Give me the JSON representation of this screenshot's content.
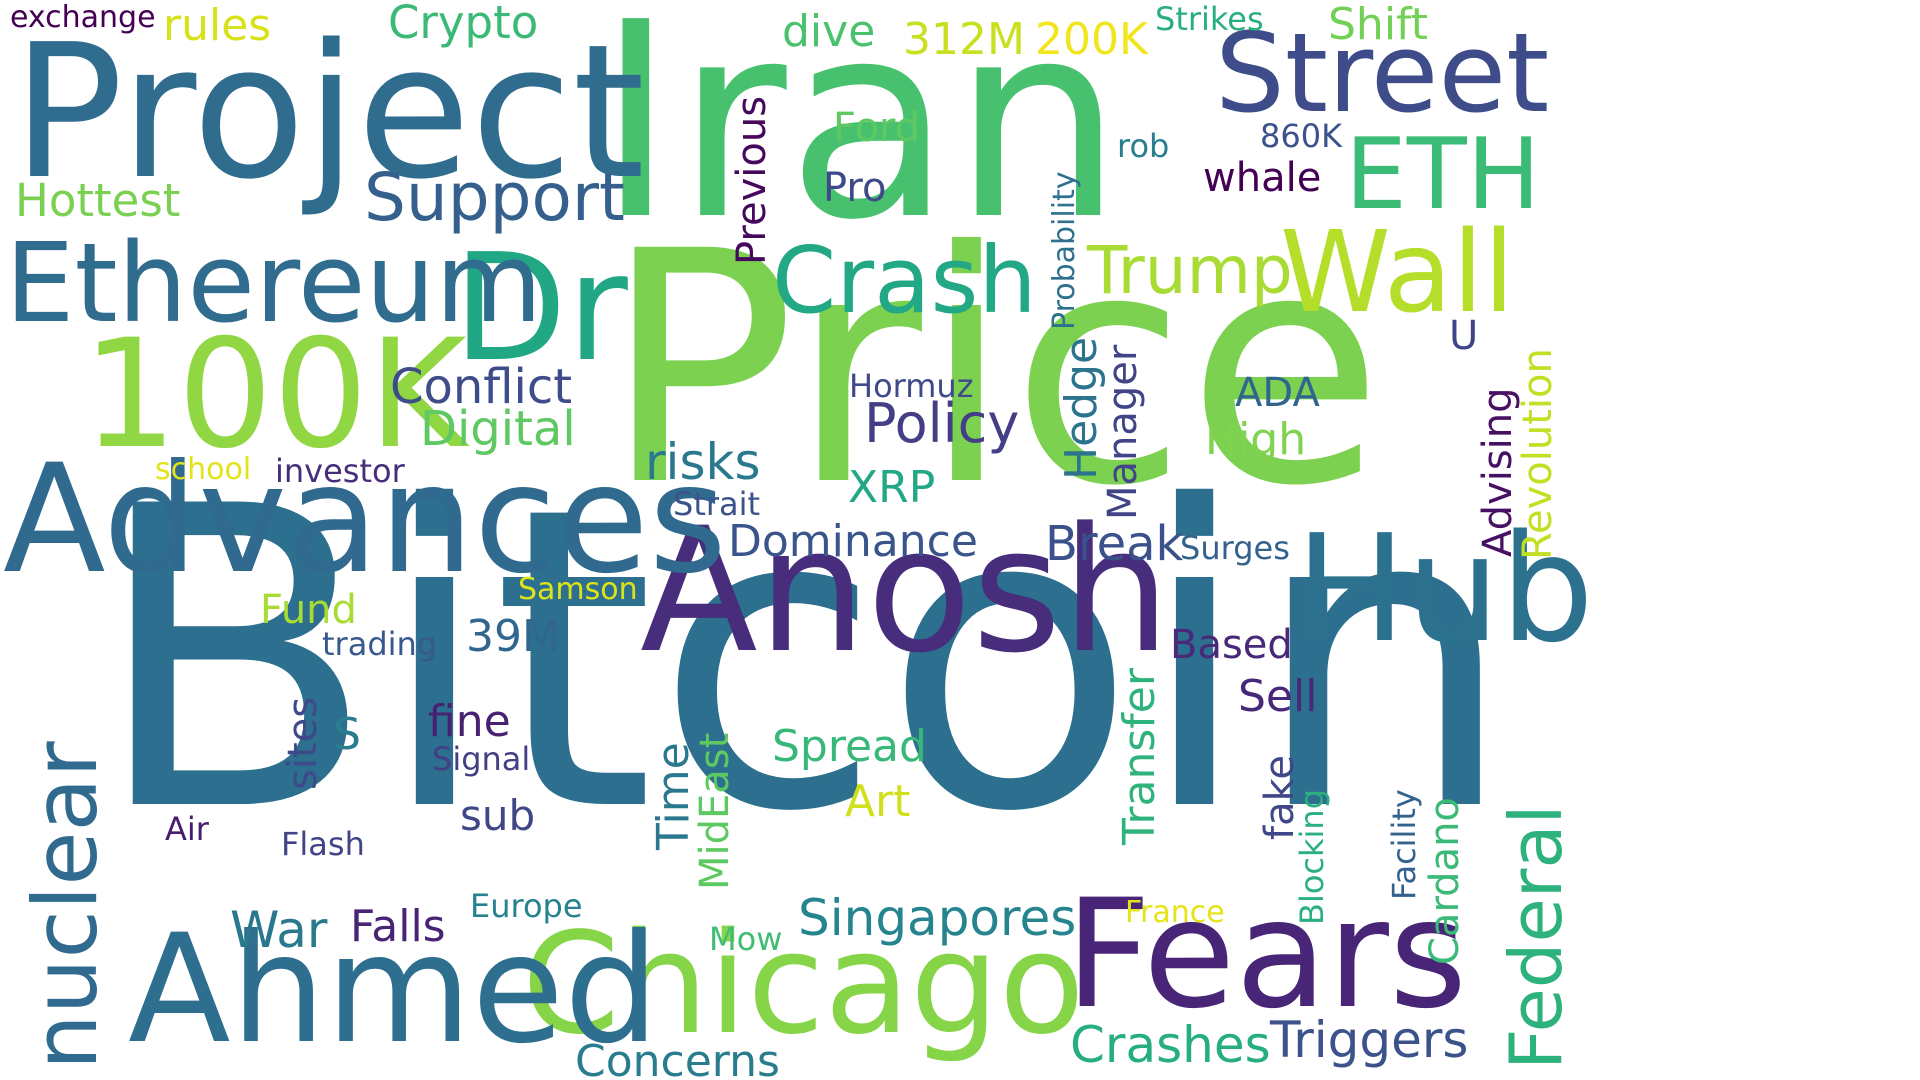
{
  "words": [
    {
      "text": "Bitcoin",
      "color": "#2d6f8e",
      "vertical": false
    },
    {
      "text": "Price",
      "color": "#7cd250",
      "vertical": false
    },
    {
      "text": "Iran",
      "color": "#48c16e",
      "vertical": false
    },
    {
      "text": "Project",
      "color": "#2f6c8e",
      "vertical": false
    },
    {
      "text": "Anosh",
      "color": "#472d7b",
      "vertical": false
    },
    {
      "text": "Fears",
      "color": "#482576",
      "vertical": false
    },
    {
      "text": "Chicago",
      "color": "#86d549",
      "vertical": false
    },
    {
      "text": "Ahmed",
      "color": "#2e6e8e",
      "vertical": false
    },
    {
      "text": "Advances",
      "color": "#306a8e",
      "vertical": false
    },
    {
      "text": "Hub",
      "color": "#2c728e",
      "vertical": false
    },
    {
      "text": "Dr",
      "color": "#22a785",
      "vertical": false
    },
    {
      "text": "100K",
      "color": "#90d743",
      "vertical": false
    },
    {
      "text": "Street",
      "color": "#3e4c8a",
      "vertical": false
    },
    {
      "text": "Ethereum",
      "color": "#2f6c8e",
      "vertical": false
    },
    {
      "text": "Crash",
      "color": "#22a884",
      "vertical": false
    },
    {
      "text": "Wall",
      "color": "#b5de2b",
      "vertical": false
    },
    {
      "text": "ETH",
      "color": "#3bbb75",
      "vertical": false
    },
    {
      "text": "nuclear",
      "color": "#306a8e",
      "vertical": true
    },
    {
      "text": "Federal",
      "color": "#2db27d",
      "vertical": true
    },
    {
      "text": "Support",
      "color": "#355f8d",
      "vertical": false
    },
    {
      "text": "Trump",
      "color": "#a8db34",
      "vertical": false
    },
    {
      "text": "Singapores",
      "color": "#25848e",
      "vertical": false
    },
    {
      "text": "Crashes",
      "color": "#26ad81",
      "vertical": false
    },
    {
      "text": "Triggers",
      "color": "#3b528b",
      "vertical": false
    },
    {
      "text": "Concerns",
      "color": "#287c8e",
      "vertical": false
    },
    {
      "text": "Conflict",
      "color": "#3e4c8a",
      "vertical": false
    },
    {
      "text": "Digital",
      "color": "#5ec962",
      "vertical": false
    },
    {
      "text": "Policy",
      "color": "#433e85",
      "vertical": false
    },
    {
      "text": "risks",
      "color": "#2a788e",
      "vertical": false
    },
    {
      "text": "Dominance",
      "color": "#3a548c",
      "vertical": false
    },
    {
      "text": "Break",
      "color": "#3b518b",
      "vertical": false
    },
    {
      "text": "Hottest",
      "color": "#7ad151",
      "vertical": false
    },
    {
      "text": "Crypto",
      "color": "#3aba76",
      "vertical": false
    },
    {
      "text": "rules",
      "color": "#d8e219",
      "vertical": false
    },
    {
      "text": "exchange",
      "color": "#440154",
      "vertical": false
    },
    {
      "text": "dive",
      "color": "#4ac16d",
      "vertical": false
    },
    {
      "text": "312M",
      "color": "#c8e020",
      "vertical": false
    },
    {
      "text": "200K",
      "color": "#f1e51d",
      "vertical": false
    },
    {
      "text": "Strikes",
      "color": "#29af7f",
      "vertical": false
    },
    {
      "text": "Shift",
      "color": "#73d056",
      "vertical": false
    },
    {
      "text": "Ford",
      "color": "#5ec962",
      "vertical": false
    },
    {
      "text": "Pro",
      "color": "#3e4989",
      "vertical": false
    },
    {
      "text": "rob",
      "color": "#277f8e",
      "vertical": false
    },
    {
      "text": "860K",
      "color": "#3b528b",
      "vertical": false
    },
    {
      "text": "whale",
      "color": "#440154",
      "vertical": false
    },
    {
      "text": "Previous",
      "color": "#46085c",
      "vertical": true
    },
    {
      "text": "Probability",
      "color": "#2d718e",
      "vertical": true
    },
    {
      "text": "Hedge",
      "color": "#2c738e",
      "vertical": true
    },
    {
      "text": "Manager",
      "color": "#414487",
      "vertical": true
    },
    {
      "text": "Hormuz",
      "color": "#3e4a89",
      "vertical": false
    },
    {
      "text": "ADA",
      "color": "#32658e",
      "vertical": false
    },
    {
      "text": "High",
      "color": "#7fd34e",
      "vertical": false
    },
    {
      "text": "U",
      "color": "#414487",
      "vertical": false
    },
    {
      "text": "Advising",
      "color": "#471063",
      "vertical": true
    },
    {
      "text": "Revolution",
      "color": "#c2df23",
      "vertical": true
    },
    {
      "text": "XRP",
      "color": "#22a884",
      "vertical": false
    },
    {
      "text": "Strait",
      "color": "#3b528b",
      "vertical": false
    },
    {
      "text": "school",
      "color": "#e2e418",
      "vertical": false
    },
    {
      "text": "investor",
      "color": "#472d7b",
      "vertical": false
    },
    {
      "text": "Surges",
      "color": "#33638d",
      "vertical": false
    },
    {
      "text": "Samson",
      "color": "#dde318",
      "vertical": false
    },
    {
      "text": "Fund",
      "color": "#a8db34",
      "vertical": false
    },
    {
      "text": "trading",
      "color": "#38598c",
      "vertical": false
    },
    {
      "text": "39M",
      "color": "#31668e",
      "vertical": false
    },
    {
      "text": "Based",
      "color": "#482878",
      "vertical": false
    },
    {
      "text": "Sell",
      "color": "#482878",
      "vertical": false
    },
    {
      "text": "Transfer",
      "color": "#2eb37c",
      "vertical": true
    },
    {
      "text": "sites",
      "color": "#3e4989",
      "vertical": true
    },
    {
      "text": "S",
      "color": "#287d8e",
      "vertical": false
    },
    {
      "text": "fine",
      "color": "#482173",
      "vertical": false
    },
    {
      "text": "Signal",
      "color": "#433e85",
      "vertical": false
    },
    {
      "text": "sub",
      "color": "#3f4788",
      "vertical": false
    },
    {
      "text": "Time",
      "color": "#2a788e",
      "vertical": true
    },
    {
      "text": "MidEast",
      "color": "#5ec962",
      "vertical": true
    },
    {
      "text": "Spread",
      "color": "#37b878",
      "vertical": false
    },
    {
      "text": "Art",
      "color": "#d0e11c",
      "vertical": false
    },
    {
      "text": "fake",
      "color": "#3f4788",
      "vertical": true
    },
    {
      "text": "Blocking",
      "color": "#2ab07f",
      "vertical": true
    },
    {
      "text": "Facility",
      "color": "#33638d",
      "vertical": true
    },
    {
      "text": "Cardano",
      "color": "#3aba76",
      "vertical": true
    },
    {
      "text": "Air",
      "color": "#481b6d",
      "vertical": false
    },
    {
      "text": "Flash",
      "color": "#414487",
      "vertical": false
    },
    {
      "text": "War",
      "color": "#2a788e",
      "vertical": false
    },
    {
      "text": "Falls",
      "color": "#482475",
      "vertical": false
    },
    {
      "text": "Europe",
      "color": "#26828e",
      "vertical": false
    },
    {
      "text": "Mow",
      "color": "#40bd72",
      "vertical": false
    },
    {
      "text": "France",
      "color": "#e5e419",
      "vertical": false
    }
  ]
}
